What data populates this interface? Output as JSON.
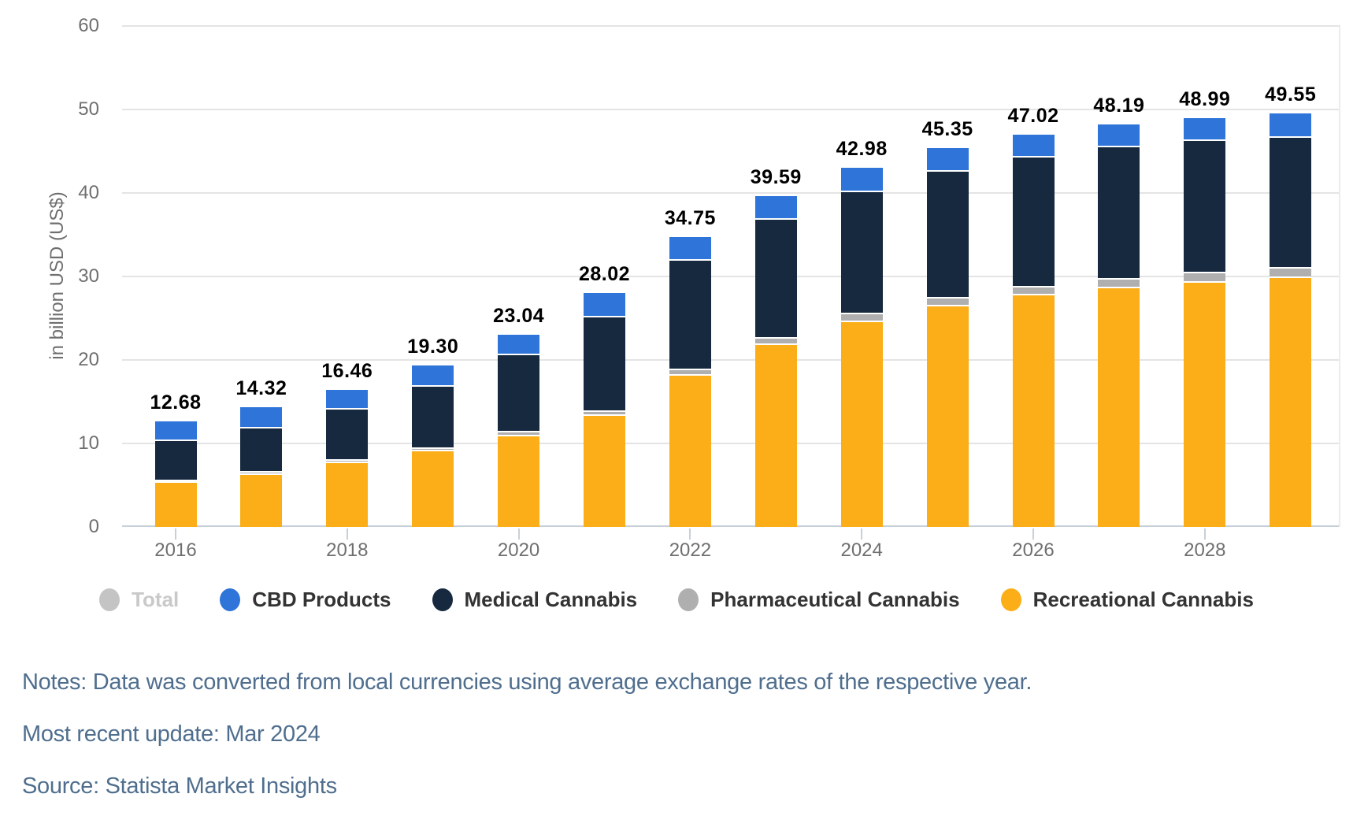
{
  "chart": {
    "y_axis_title": "in billion USD (US$)",
    "y_ticks": [
      0,
      10,
      20,
      30,
      40,
      50,
      60
    ],
    "x_tick_years": [
      "2016",
      "2018",
      "2020",
      "2022",
      "2024",
      "2026",
      "2028"
    ]
  },
  "chart_data": {
    "type": "bar",
    "stacked": true,
    "title": "",
    "xlabel": "",
    "ylabel": "in billion USD (US$)",
    "ylim": [
      0,
      60
    ],
    "grid": "horizontal",
    "legend_position": "bottom",
    "categories": [
      "2016",
      "2017",
      "2018",
      "2019",
      "2020",
      "2021",
      "2022",
      "2023",
      "2024",
      "2025",
      "2026",
      "2027",
      "2028",
      "2029"
    ],
    "series": [
      {
        "name": "Recreational Cannabis",
        "color": "#fbae17",
        "values": [
          5.44,
          6.4,
          7.8,
          9.2,
          11.05,
          13.45,
          18.35,
          22.0,
          24.7,
          26.6,
          27.95,
          28.8,
          29.45,
          30.0
        ]
      },
      {
        "name": "Pharmaceutical Cannabis",
        "color": "#afafaf",
        "values": [
          0.25,
          0.28,
          0.3,
          0.32,
          0.5,
          0.55,
          0.6,
          0.75,
          1.0,
          0.95,
          0.95,
          1.0,
          1.1,
          1.1
        ]
      },
      {
        "name": "Medical Cannabis",
        "color": "#16293f",
        "values": [
          4.74,
          5.34,
          6.16,
          7.48,
          9.19,
          11.32,
          13.1,
          14.24,
          14.58,
          15.2,
          15.57,
          15.89,
          15.89,
          15.7
        ]
      },
      {
        "name": "CBD Products",
        "color": "#2e74d9",
        "values": [
          2.25,
          2.3,
          2.2,
          2.3,
          2.3,
          2.7,
          2.7,
          2.6,
          2.7,
          2.6,
          2.55,
          2.5,
          2.55,
          2.75
        ]
      }
    ],
    "totals": [
      12.68,
      14.32,
      16.46,
      19.3,
      23.04,
      28.02,
      34.75,
      39.59,
      42.98,
      45.35,
      47.02,
      48.19,
      48.99,
      49.55
    ],
    "total_labels": [
      "12.68",
      "14.32",
      "16.46",
      "19.30",
      "23.04",
      "28.02",
      "34.75",
      "39.59",
      "42.98",
      "45.35",
      "47.02",
      "48.19",
      "48.99",
      "49.55"
    ]
  },
  "legend": {
    "items": [
      {
        "label": "Total",
        "color": "#c4c4c4",
        "disabled": true
      },
      {
        "label": "CBD Products",
        "color": "#2e74d9",
        "disabled": false
      },
      {
        "label": "Medical Cannabis",
        "color": "#16293f",
        "disabled": false
      },
      {
        "label": "Pharmaceutical Cannabis",
        "color": "#afafaf",
        "disabled": false
      },
      {
        "label": "Recreational Cannabis",
        "color": "#fbae17",
        "disabled": false
      }
    ]
  },
  "notes": {
    "line1": "Notes: Data was converted from local currencies using average exchange rates of the respective year.",
    "line2": "Most recent update: Mar 2024",
    "line3": "Source: Statista Market Insights"
  }
}
